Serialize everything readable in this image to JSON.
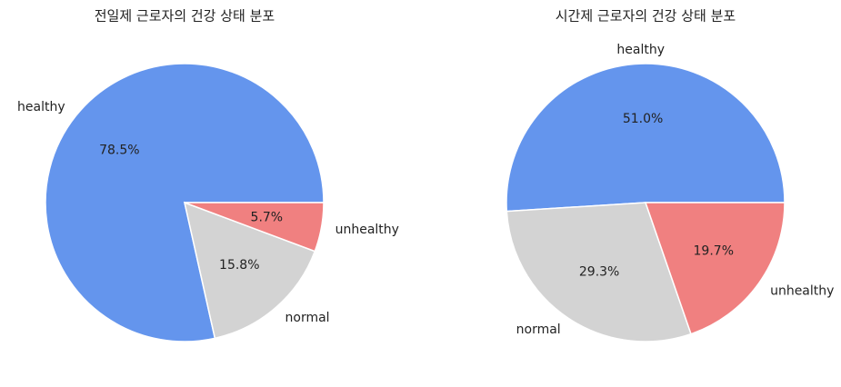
{
  "chart_data": [
    {
      "type": "pie",
      "title": "전일제 근로자의 건강 상태 분포",
      "categories": [
        "healthy",
        "normal",
        "unhealthy"
      ],
      "values": [
        78.5,
        15.8,
        5.7
      ],
      "value_labels": [
        "78.5%",
        "15.8%",
        "5.7%"
      ],
      "colors": [
        "#6495ED",
        "#D3D3D3",
        "#F08080"
      ]
    },
    {
      "type": "pie",
      "title": "시간제 근로자의 건강 상태 분포",
      "categories": [
        "healthy",
        "normal",
        "unhealthy"
      ],
      "values": [
        51.0,
        29.3,
        19.7
      ],
      "value_labels": [
        "51.0%",
        "29.3%",
        "19.7%"
      ],
      "colors": [
        "#6495ED",
        "#D3D3D3",
        "#F08080"
      ]
    }
  ]
}
